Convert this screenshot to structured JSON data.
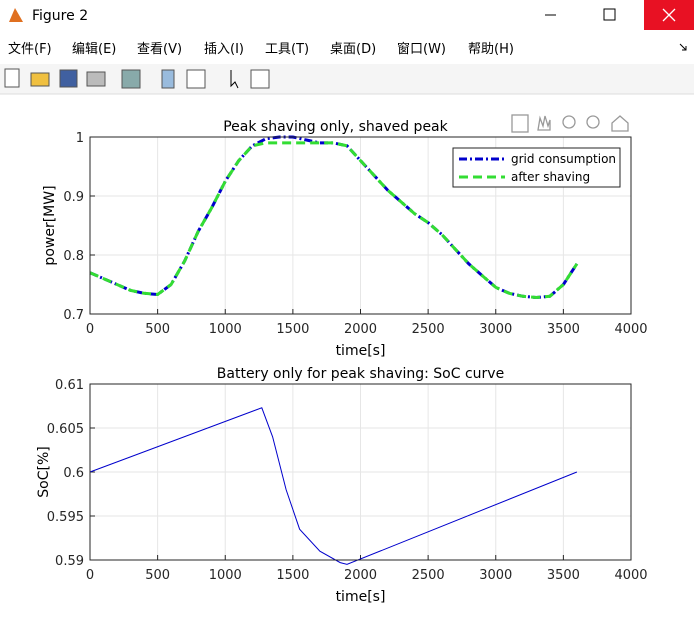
{
  "window": {
    "title": "Figure 2",
    "menu": [
      "文件(F)",
      "编辑(E)",
      "查看(V)",
      "插入(I)",
      "工具(T)",
      "桌面(D)",
      "窗口(W)",
      "帮助(H)"
    ]
  },
  "chart_data": [
    {
      "type": "line",
      "title": "Peak shaving only, shaved peak",
      "xlabel": "time[s]",
      "ylabel": "power[MW]",
      "x": [
        0,
        100,
        200,
        300,
        400,
        500,
        600,
        700,
        800,
        900,
        1000,
        1100,
        1200,
        1300,
        1400,
        1500,
        1600,
        1700,
        1800,
        1900,
        2000,
        2100,
        2200,
        2300,
        2400,
        2500,
        2600,
        2700,
        2800,
        2900,
        3000,
        3100,
        3200,
        3300,
        3400,
        3500,
        3600
      ],
      "series": [
        {
          "name": "grid consumption",
          "color": "#0000cc",
          "dash": "dashdot",
          "values": [
            0.77,
            0.76,
            0.75,
            0.74,
            0.735,
            0.733,
            0.75,
            0.79,
            0.84,
            0.88,
            0.925,
            0.96,
            0.985,
            0.997,
            1,
            1,
            0.995,
            0.99,
            0.99,
            0.985,
            0.96,
            0.935,
            0.91,
            0.89,
            0.87,
            0.855,
            0.835,
            0.81,
            0.785,
            0.765,
            0.745,
            0.735,
            0.73,
            0.728,
            0.73,
            0.75,
            0.785
          ]
        },
        {
          "name": "after shaving",
          "color": "#33dd33",
          "dash": "dashed",
          "values": [
            0.77,
            0.76,
            0.75,
            0.74,
            0.735,
            0.733,
            0.75,
            0.79,
            0.84,
            0.88,
            0.925,
            0.96,
            0.985,
            0.99,
            0.99,
            0.99,
            0.99,
            0.99,
            0.99,
            0.985,
            0.96,
            0.935,
            0.91,
            0.89,
            0.87,
            0.855,
            0.835,
            0.81,
            0.785,
            0.765,
            0.745,
            0.735,
            0.73,
            0.728,
            0.73,
            0.75,
            0.785
          ]
        }
      ],
      "xlim": [
        0,
        4000
      ],
      "xticks": [
        0,
        500,
        1000,
        1500,
        2000,
        2500,
        3000,
        3500,
        4000
      ],
      "ylim": [
        0.7,
        1
      ],
      "yticks": [
        0.7,
        0.8,
        0.9,
        1
      ],
      "grid": true,
      "legend": "northeast"
    },
    {
      "type": "line",
      "title": "Battery only for peak shaving: SoC curve",
      "xlabel": "time[s]",
      "ylabel": "SoC[%]",
      "x": [
        0,
        1270,
        1350,
        1450,
        1550,
        1700,
        1850,
        1900,
        3600
      ],
      "values": [
        0.6,
        0.6073,
        0.604,
        0.598,
        0.5935,
        0.591,
        0.5897,
        0.5895,
        0.6
      ],
      "color": "#0000cc",
      "xlim": [
        0,
        4000
      ],
      "xticks": [
        0,
        500,
        1000,
        1500,
        2000,
        2500,
        3000,
        3500,
        4000
      ],
      "ylim": [
        0.59,
        0.61
      ],
      "yticks": [
        0.59,
        0.595,
        0.6,
        0.605,
        0.61
      ],
      "grid": true
    }
  ]
}
